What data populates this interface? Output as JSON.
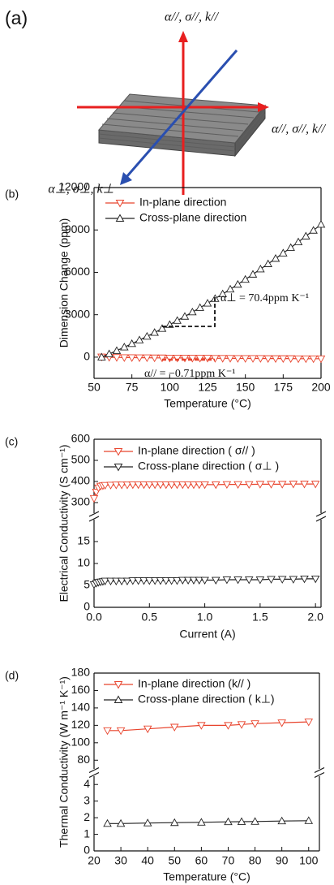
{
  "diagram": {
    "label": "(a)",
    "axis_labels": [
      "α//, σ//, k//",
      "α//, σ//, k//",
      "α⊥, σ⊥, k⊥"
    ]
  },
  "chart_data": [
    {
      "type": "line",
      "panel_label": "(b)",
      "x_label": "Temperature (°C)",
      "y_label": "Dimension Change (ppm)",
      "x": [
        55,
        60,
        65,
        70,
        75,
        80,
        85,
        90,
        95,
        100,
        105,
        110,
        115,
        120,
        125,
        130,
        135,
        140,
        145,
        150,
        155,
        160,
        165,
        170,
        175,
        180,
        185,
        190,
        195,
        200
      ],
      "xlim": [
        50,
        200
      ],
      "xticks": [
        50,
        75,
        100,
        125,
        150,
        175,
        200
      ],
      "ylim": [
        -1500,
        12000
      ],
      "yticks": [
        0,
        3000,
        6000,
        9000,
        12000
      ],
      "series": [
        {
          "name": "In-plane direction",
          "color": "#e8432c",
          "marker": "triangle-down",
          "values": [
            20,
            -10,
            -20,
            -30,
            -30,
            -40,
            -40,
            -50,
            -50,
            -60,
            -60,
            -60,
            -70,
            -70,
            -70,
            -80,
            -80,
            -80,
            -90,
            -90,
            -90,
            -90,
            -100,
            -100,
            -100,
            -100,
            -110,
            -110,
            -110,
            -110
          ]
        },
        {
          "name": "Cross-plane direction",
          "color": "#222222",
          "marker": "triangle-up",
          "values": [
            0,
            230,
            460,
            710,
            950,
            1210,
            1470,
            1740,
            2020,
            2300,
            2590,
            2880,
            3190,
            3500,
            3810,
            4140,
            4470,
            4810,
            5150,
            5500,
            5860,
            6230,
            6600,
            6980,
            7360,
            7750,
            8150,
            8560,
            8970,
            9390
          ]
        }
      ],
      "annotations": [
        "α⊥ = 70.4ppm K⁻¹",
        "α// = −0.71ppm K⁻¹"
      ]
    },
    {
      "type": "line",
      "panel_label": "(c)",
      "x_label": "Current (A)",
      "y_label": "Electrical Conductivity (S cm⁻¹)",
      "broken_y": true,
      "x": [
        0,
        0.02,
        0.04,
        0.06,
        0.08,
        0.1,
        0.15,
        0.2,
        0.25,
        0.3,
        0.35,
        0.4,
        0.45,
        0.5,
        0.55,
        0.6,
        0.65,
        0.7,
        0.75,
        0.8,
        0.85,
        0.9,
        0.95,
        1.0,
        1.1,
        1.2,
        1.3,
        1.4,
        1.5,
        1.6,
        1.7,
        1.8,
        1.9,
        2.0
      ],
      "xlim": [
        0,
        2.05
      ],
      "xticks": [
        {
          "value": 0,
          "label": "0.0"
        },
        0.5,
        {
          "value": 1,
          "label": "1.0"
        },
        1.5,
        {
          "value": 2,
          "label": "2.0"
        }
      ],
      "ylim_upper": [
        250,
        600
      ],
      "yticks_upper": [
        300,
        400,
        500,
        600
      ],
      "ylim_lower": [
        0,
        20
      ],
      "yticks_lower": [
        0,
        5,
        10,
        15
      ],
      "series": [
        {
          "name": "In-plane direction ( σ// )",
          "color": "#e8432c",
          "marker": "triangle-down",
          "values": [
            320,
            350,
            370,
            378,
            380,
            382,
            383,
            384,
            384,
            384,
            385,
            385,
            385,
            385,
            385,
            385,
            385,
            385,
            385,
            385,
            385,
            385,
            385,
            385,
            385,
            386,
            386,
            386,
            387,
            387,
            387,
            388,
            388,
            388
          ]
        },
        {
          "name": "Cross-plane direction ( σ⊥ )",
          "color": "#222222",
          "marker": "triangle-down",
          "values": [
            5.2,
            5.5,
            5.7,
            5.8,
            5.9,
            6.0,
            6.0,
            6.0,
            6.0,
            6.0,
            6.1,
            6.1,
            6.1,
            6.1,
            6.1,
            6.1,
            6.1,
            6.1,
            6.1,
            6.2,
            6.2,
            6.2,
            6.2,
            6.2,
            6.2,
            6.3,
            6.3,
            6.3,
            6.3,
            6.4,
            6.4,
            6.4,
            6.5,
            6.5
          ]
        }
      ]
    },
    {
      "type": "line",
      "panel_label": "(d)",
      "x_label": "Temperature (°C)",
      "y_label": "Thermal Conductivity (W m⁻¹ K⁻¹)",
      "broken_y": true,
      "x": [
        25,
        30,
        40,
        50,
        60,
        70,
        75,
        80,
        90,
        100
      ],
      "xlim": [
        20,
        104
      ],
      "xticks": [
        20,
        30,
        40,
        50,
        60,
        70,
        80,
        90,
        100
      ],
      "ylim_upper": [
        70,
        180
      ],
      "yticks_upper": [
        80,
        100,
        120,
        140,
        160,
        180
      ],
      "ylim_lower": [
        0,
        4.5
      ],
      "yticks_lower": [
        0,
        1,
        2,
        3,
        4
      ],
      "series": [
        {
          "name": "In-plane direction (k// )",
          "color": "#e8432c",
          "marker": "triangle-down",
          "values": [
            114,
            114,
            116,
            118,
            120,
            120,
            121,
            122,
            123,
            124
          ]
        },
        {
          "name": "Cross-plane direction ( k⊥)",
          "color": "#222222",
          "marker": "triangle-up",
          "values": [
            1.65,
            1.65,
            1.68,
            1.7,
            1.72,
            1.75,
            1.76,
            1.77,
            1.8,
            1.82
          ]
        }
      ]
    }
  ]
}
